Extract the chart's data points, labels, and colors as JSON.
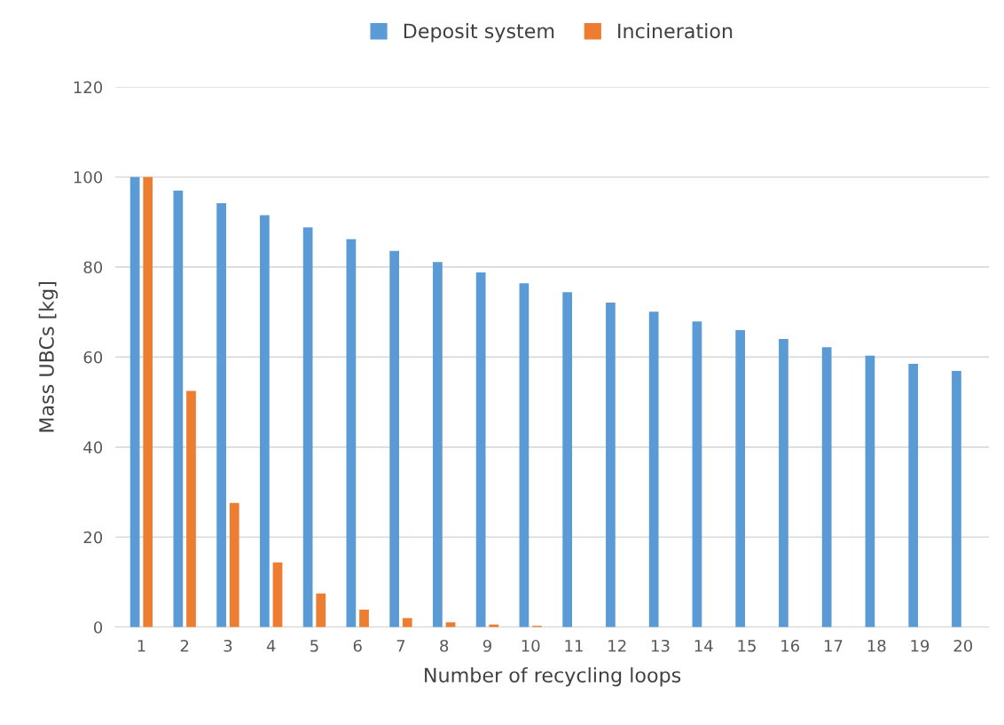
{
  "chart_data": {
    "type": "bar",
    "xlabel": "Number of recycling loops",
    "ylabel": "Mass UBCs [kg]",
    "categories": [
      "1",
      "2",
      "3",
      "4",
      "5",
      "6",
      "7",
      "8",
      "9",
      "10",
      "11",
      "12",
      "13",
      "14",
      "15",
      "16",
      "17",
      "18",
      "19",
      "20"
    ],
    "series": [
      {
        "name": "Deposit system",
        "color": "#5b9bd5",
        "values": [
          100,
          97.0,
          94.2,
          91.5,
          88.8,
          86.2,
          83.6,
          81.1,
          78.8,
          76.4,
          74.4,
          72.1,
          70.1,
          67.9,
          66.0,
          64.0,
          62.2,
          60.3,
          58.5,
          56.9
        ]
      },
      {
        "name": "Incineration",
        "color": "#ed7d31",
        "values": [
          100,
          52.5,
          27.6,
          14.4,
          7.5,
          3.9,
          2.0,
          1.1,
          0.6,
          0.3,
          0,
          0,
          0,
          0,
          0,
          0,
          0,
          0,
          0,
          0
        ]
      }
    ],
    "ylim": [
      0,
      120
    ],
    "yticks": [
      0,
      20,
      40,
      60,
      80,
      100,
      120
    ],
    "grid": "y",
    "legend": "top"
  }
}
